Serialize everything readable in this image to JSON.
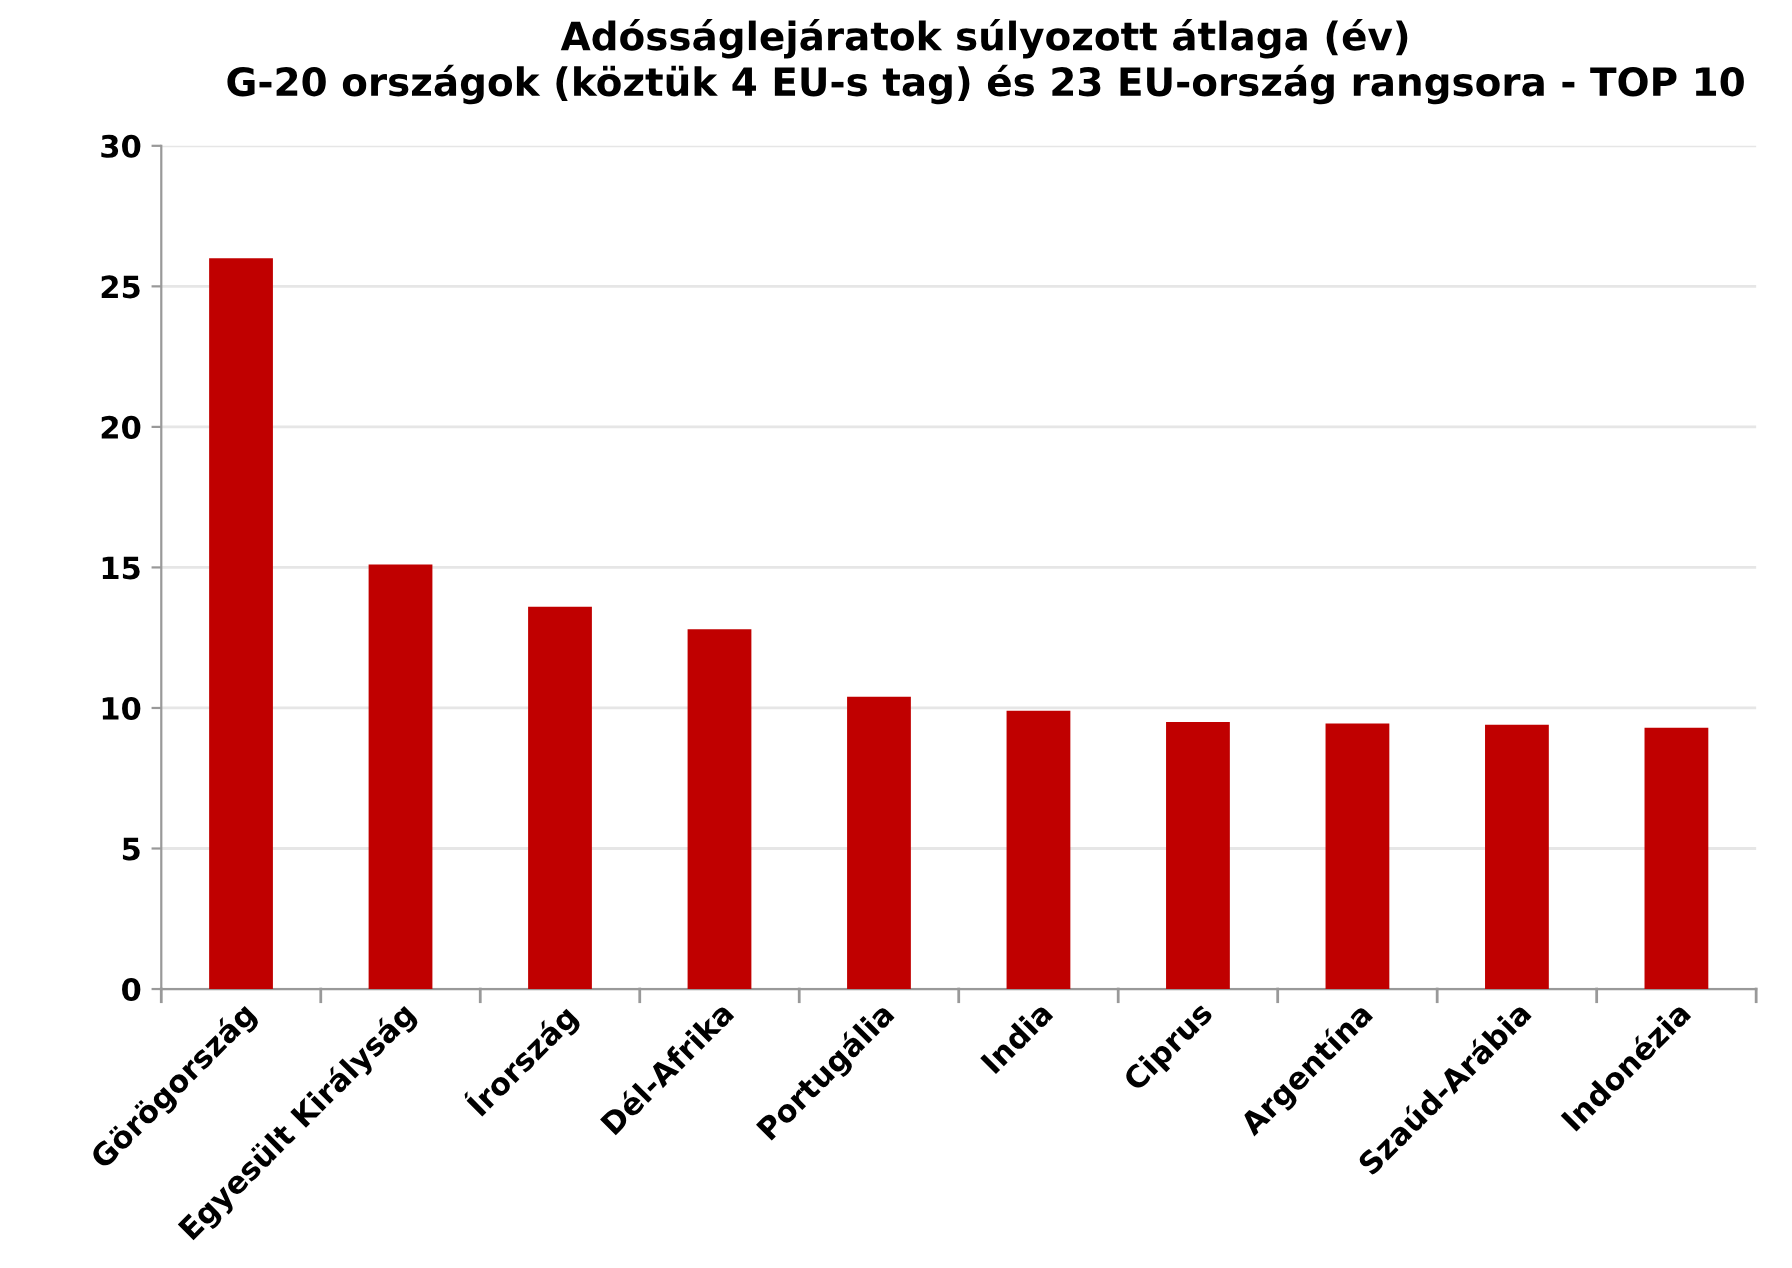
{
  "chart_data": {
    "type": "bar",
    "title": "Adósságlejáratok súlyozott átlaga (év)\nG-20 országok (köztük 4 EU-s tag) és 23 EU-ország rangsora - TOP 10",
    "categories": [
      "Görögország",
      "Egyesült Királyság",
      "Írország",
      "Dél-Afrika",
      "Portugália",
      "India",
      "Ciprus",
      "Argentína",
      "Szaúd-Arábia",
      "Indonézia"
    ],
    "values": [
      26.0,
      15.1,
      13.6,
      12.8,
      10.4,
      9.9,
      9.5,
      9.45,
      9.4,
      9.3
    ],
    "color": "#c00000",
    "ylim": [
      0,
      30
    ],
    "yticks": [
      0,
      5,
      10,
      15,
      20,
      25,
      30
    ],
    "grid": "y"
  }
}
